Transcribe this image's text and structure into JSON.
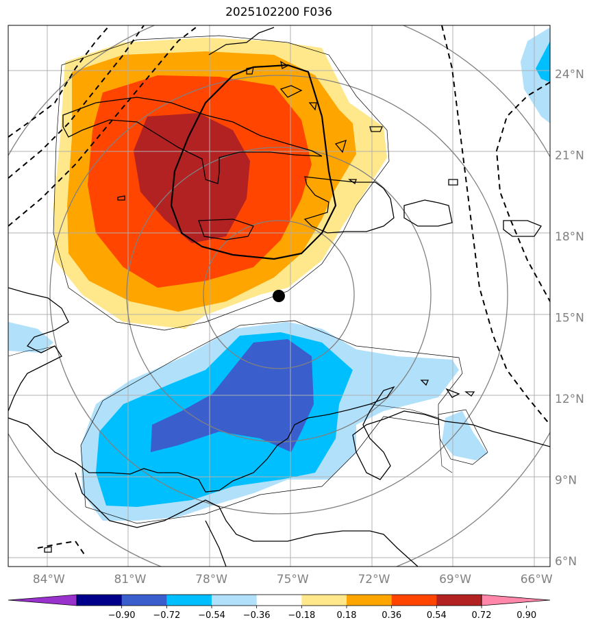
{
  "title": "2025102200 F036",
  "colors": {
    "pos1": "#ffe88c",
    "pos2": "#ffa500",
    "pos3": "#ff4500",
    "pos4": "#b22222",
    "neg1": "#b0e0fa",
    "neg2": "#00bfff",
    "neg3": "#3a5fcd",
    "ocean": "#ffffff",
    "grid": "#b0b0b0",
    "circles": "#808080"
  },
  "map": {
    "lon_range": [
      -85.5,
      -65.5
    ],
    "lat_range": [
      5.8,
      25.8
    ],
    "lon_ticks": [
      {
        "lon": -84,
        "label": "84°W"
      },
      {
        "lon": -81,
        "label": "81°W"
      },
      {
        "lon": -78,
        "label": "78°W"
      },
      {
        "lon": -75,
        "label": "75°W"
      },
      {
        "lon": -72,
        "label": "72°W"
      },
      {
        "lon": -69,
        "label": "69°W"
      },
      {
        "lon": -66,
        "label": "66°W"
      }
    ],
    "lat_ticks": [
      {
        "lat": 24,
        "label": "24°N"
      },
      {
        "lat": 21,
        "label": "21°N"
      },
      {
        "lat": 18,
        "label": "18°N"
      },
      {
        "lat": 15,
        "label": "15°N"
      },
      {
        "lat": 12,
        "label": "12°N"
      },
      {
        "lat": 9,
        "label": "9°N"
      },
      {
        "lat": 6,
        "label": "6°N"
      }
    ],
    "center_marker": {
      "lon": -75.3,
      "lat": 15.7
    },
    "range_rings_deg": [
      3,
      6,
      9,
      12
    ]
  },
  "colorbar": {
    "ticks": [
      "−0.90",
      "−0.72",
      "−0.54",
      "−0.36",
      "−0.18",
      "0.18",
      "0.36",
      "0.54",
      "0.72",
      "0.90"
    ],
    "colors": [
      "#9932cc",
      "#00008b",
      "#3a5fcd",
      "#00bfff",
      "#b0e0fa",
      "#ffffff",
      "#ffe88c",
      "#ffa500",
      "#ff4500",
      "#b22222",
      "#ff88aa"
    ]
  }
}
